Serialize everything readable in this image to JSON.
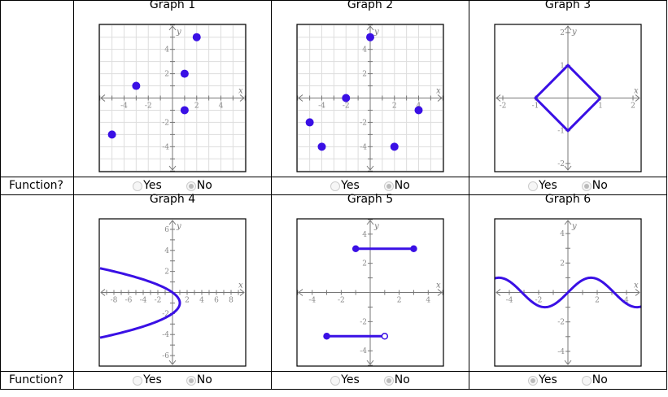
{
  "question_label": "Function?",
  "option_yes": "Yes",
  "option_no": "No",
  "colors": {
    "curve": "#3a10e5",
    "axis": "#777777",
    "grid": "#dddddd"
  },
  "graphs": [
    {
      "title": "Graph 1",
      "selected": "No",
      "xlim": [
        -6.05,
        6.05
      ],
      "ylim": [
        -6.05,
        6.05
      ],
      "grid": true,
      "tick_step": 1,
      "label_step": 2,
      "tick_labels_x": [
        "-4",
        "-2",
        "2",
        "4"
      ],
      "tick_labels_y": [
        "4",
        "2",
        "-2",
        "-4"
      ],
      "points": [
        [
          2,
          5
        ],
        [
          1,
          2
        ],
        [
          -3,
          1
        ],
        [
          1,
          -1
        ],
        [
          -5,
          -3
        ]
      ]
    },
    {
      "title": "Graph 2",
      "selected": "No",
      "xlim": [
        -6.05,
        6.05
      ],
      "ylim": [
        -6.05,
        6.05
      ],
      "grid": true,
      "tick_step": 1,
      "label_step": 2,
      "tick_labels_x": [
        "-4",
        "-2",
        "2",
        "4"
      ],
      "tick_labels_y": [
        "4",
        "2",
        "-2",
        "-4"
      ],
      "points": [
        [
          0,
          5
        ],
        [
          -2,
          0
        ],
        [
          -5,
          -2
        ],
        [
          -4,
          -4
        ],
        [
          2,
          -4
        ],
        [
          4,
          -1
        ]
      ]
    },
    {
      "title": "Graph 3",
      "selected": "No",
      "xlim": [
        -2.25,
        2.25
      ],
      "ylim": [
        -2.25,
        2.25
      ],
      "grid": false,
      "tick_step": 1,
      "label_step": 1,
      "tick_labels_x": [
        "-2",
        "-1",
        "1",
        "2"
      ],
      "tick_labels_y": [
        "2",
        "1",
        "-1",
        "-2"
      ],
      "polyline": [
        [
          1,
          0
        ],
        [
          0,
          1
        ],
        [
          -1,
          0
        ],
        [
          0,
          -1
        ],
        [
          1,
          0
        ]
      ]
    },
    {
      "title": "Graph 4",
      "selected": "No",
      "xlim": [
        -10,
        10
      ],
      "ylim": [
        -7,
        7
      ],
      "grid": false,
      "tick_step": 1,
      "label_step": 2,
      "tick_labels_x": [
        "-8",
        "-6",
        "-4",
        "-2",
        "2",
        "4",
        "6",
        "8"
      ],
      "tick_labels_y": [
        "6",
        "4",
        "2",
        "-2",
        "-4",
        "-6"
      ],
      "curve": {
        "type": "parabola_x",
        "equation": "x = 1 - (y + 1)^2",
        "vertex": [
          1,
          -1
        ],
        "a": -1
      }
    },
    {
      "title": "Graph 5",
      "selected": "No",
      "xlim": [
        -5.05,
        5.05
      ],
      "ylim": [
        -5.05,
        5.05
      ],
      "grid": false,
      "tick_step": 1,
      "label_step": 2,
      "tick_labels_x": [
        "-4",
        "-2",
        "2",
        "4"
      ],
      "tick_labels_y": [
        "4",
        "2",
        "-2",
        "-4"
      ],
      "segments": [
        {
          "from": [
            -1,
            3
          ],
          "to": [
            3,
            3
          ],
          "from_closed": true,
          "to_closed": true
        },
        {
          "from": [
            -3,
            -3
          ],
          "to": [
            1,
            -3
          ],
          "from_closed": true,
          "to_closed": false
        }
      ]
    },
    {
      "title": "Graph 6",
      "selected": "Yes",
      "xlim": [
        -5,
        5
      ],
      "ylim": [
        -5,
        5
      ],
      "grid": false,
      "tick_step": 1,
      "label_step": 2,
      "tick_labels_x": [
        "-4",
        "-2",
        "2",
        "4"
      ],
      "tick_labels_y": [
        "4",
        "2",
        "-2",
        "-4"
      ],
      "curve": {
        "type": "sine",
        "equation": "y = sin(x)",
        "amplitude": 1,
        "frequency": 1
      }
    }
  ]
}
